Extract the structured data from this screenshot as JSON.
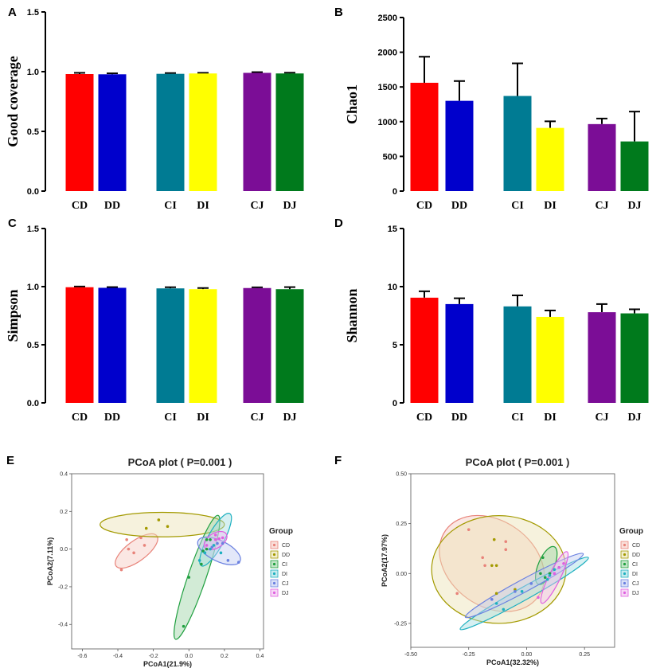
{
  "chart_data": [
    {
      "type": "bar",
      "panel": "A",
      "ylabel": "Good coverage",
      "ylim": [
        0,
        1.5
      ],
      "yticks": [
        "0.0",
        "0.5",
        "1.0",
        "1.5"
      ],
      "yticks_values": [
        0,
        0.5,
        1.0,
        1.5
      ],
      "categories": [
        "CD",
        "DD",
        "CI",
        "DI",
        "CJ",
        "DJ"
      ],
      "values": [
        0.98,
        0.978,
        0.982,
        0.985,
        0.99,
        0.985
      ],
      "errors": [
        0.01,
        0.008,
        0.006,
        0.005,
        0.006,
        0.006
      ],
      "colors": [
        "#ff0000",
        "#0000cc",
        "#007b93",
        "#ffff00",
        "#7b0d96",
        "#007a1c"
      ]
    },
    {
      "type": "bar",
      "panel": "B",
      "ylabel": "Chao1",
      "ylim": [
        0,
        2500
      ],
      "yticks": [
        "0",
        "500",
        "1000",
        "1500",
        "2000",
        "2500"
      ],
      "yticks_values": [
        0,
        500,
        1000,
        1500,
        2000,
        2500
      ],
      "categories": [
        "CD",
        "DD",
        "CI",
        "DI",
        "CJ",
        "DJ"
      ],
      "values": [
        1560,
        1300,
        1370,
        910,
        965,
        715
      ],
      "errors": [
        375,
        285,
        470,
        95,
        80,
        430
      ],
      "colors": [
        "#ff0000",
        "#0000cc",
        "#007b93",
        "#ffff00",
        "#7b0d96",
        "#007a1c"
      ]
    },
    {
      "type": "bar",
      "panel": "C",
      "ylabel": "Simpson",
      "ylim": [
        0,
        1.5
      ],
      "yticks": [
        "0.0",
        "0.5",
        "1.0",
        "1.5"
      ],
      "yticks_values": [
        0,
        0.5,
        1.0,
        1.5
      ],
      "categories": [
        "CD",
        "DD",
        "CI",
        "DI",
        "CJ",
        "DJ"
      ],
      "values": [
        0.995,
        0.99,
        0.985,
        0.978,
        0.988,
        0.978
      ],
      "errors": [
        0.006,
        0.006,
        0.01,
        0.01,
        0.006,
        0.018
      ],
      "colors": [
        "#ff0000",
        "#0000cc",
        "#007b93",
        "#ffff00",
        "#7b0d96",
        "#007a1c"
      ]
    },
    {
      "type": "bar",
      "panel": "D",
      "ylabel": "Shannon",
      "ylim": [
        0,
        15
      ],
      "yticks": [
        "0",
        "5",
        "10",
        "15"
      ],
      "yticks_values": [
        0,
        5,
        10,
        15
      ],
      "categories": [
        "CD",
        "DD",
        "CI",
        "DI",
        "CJ",
        "DJ"
      ],
      "values": [
        9.05,
        8.5,
        8.3,
        7.4,
        7.8,
        7.7
      ],
      "errors": [
        0.55,
        0.5,
        0.95,
        0.55,
        0.7,
        0.35
      ],
      "colors": [
        "#ff0000",
        "#0000cc",
        "#007b93",
        "#ffff00",
        "#7b0d96",
        "#007a1c"
      ]
    },
    {
      "type": "scatter",
      "panel": "E",
      "title": "PCoA plot ( P=0.001 )",
      "xlabel": "PCoA1(21.9%)",
      "ylabel": "PCoA2(7.11%)",
      "xlim": [
        -0.66,
        0.42
      ],
      "ylim": [
        -0.53,
        0.4
      ],
      "xticks": [
        "-0.6",
        "-0.4",
        "-0.2",
        "0.0",
        "0.2",
        "0.4"
      ],
      "xticks_values": [
        -0.6,
        -0.4,
        -0.2,
        0.0,
        0.2,
        0.4
      ],
      "yticks": [
        "0.4",
        "0.2",
        "0.0",
        "-0.2",
        "-0.4"
      ],
      "yticks_values": [
        0.4,
        0.2,
        0.0,
        -0.2,
        -0.4
      ],
      "legend_title": "Group",
      "series": [
        {
          "name": "CD",
          "color": "#e8837a",
          "fill": "#f7c9c2",
          "points": [
            [
              -0.35,
              0.05
            ],
            [
              -0.34,
              0.0
            ],
            [
              -0.31,
              -0.02
            ],
            [
              -0.25,
              0.02
            ],
            [
              -0.27,
              0.06
            ],
            [
              -0.38,
              -0.11
            ]
          ],
          "ellipse": {
            "cx": -0.295,
            "cy": -0.01,
            "rx": 0.14,
            "ry": 0.055,
            "angle": 35
          }
        },
        {
          "name": "DD",
          "color": "#a39a00",
          "fill": "#eae2b3",
          "points": [
            [
              -0.17,
              0.155
            ],
            [
              -0.12,
              0.12
            ],
            [
              -0.24,
              0.11
            ]
          ],
          "ellipse": {
            "cx": -0.15,
            "cy": 0.13,
            "rx": 0.35,
            "ry": 0.065,
            "angle": 0
          }
        },
        {
          "name": "CI",
          "color": "#20a040",
          "fill": "#9bd3a3",
          "points": [
            [
              0.1,
              0.05
            ],
            [
              0.12,
              0.05
            ],
            [
              0.1,
              0.0
            ],
            [
              0.07,
              -0.08
            ],
            [
              0.0,
              -0.15
            ],
            [
              -0.03,
              -0.41
            ],
            [
              0.08,
              -0.01
            ]
          ],
          "ellipse": {
            "cx": 0.045,
            "cy": -0.15,
            "rx": 0.35,
            "ry": 0.05,
            "angle": 70
          }
        },
        {
          "name": "DI",
          "color": "#1eb0c0",
          "fill": "#a3dde3",
          "points": [
            [
              0.12,
              0.0
            ],
            [
              0.14,
              0.02
            ],
            [
              0.18,
              -0.02
            ],
            [
              0.06,
              -0.06
            ],
            [
              0.09,
              -0.02
            ]
          ],
          "ellipse": {
            "cx": 0.15,
            "cy": 0.05,
            "rx": 0.16,
            "ry": 0.045,
            "angle": 60
          }
        },
        {
          "name": "CJ",
          "color": "#6a80e0",
          "fill": "#c2ccf2",
          "points": [
            [
              0.16,
              0.03
            ],
            [
              0.19,
              0.03
            ],
            [
              0.22,
              -0.06
            ],
            [
              0.28,
              -0.07
            ],
            [
              0.13,
              0.01
            ]
          ],
          "ellipse": {
            "cx": 0.17,
            "cy": -0.01,
            "rx": 0.13,
            "ry": 0.055,
            "angle": -25
          }
        },
        {
          "name": "DJ",
          "color": "#e060e0",
          "fill": "#f0bff0",
          "points": [
            [
              0.15,
              0.075
            ],
            [
              0.17,
              0.055
            ],
            [
              0.15,
              0.05
            ],
            [
              0.19,
              0.06
            ],
            [
              0.1,
              0.02
            ]
          ],
          "ellipse": {
            "cx": 0.15,
            "cy": 0.045,
            "rx": 0.07,
            "ry": 0.04,
            "angle": 30
          }
        }
      ]
    },
    {
      "type": "scatter",
      "panel": "F",
      "title": "PCoA plot ( P=0.001 )",
      "xlabel": "PCoA1(32.32%)",
      "ylabel": "PCoA2(17.97%)",
      "xlim": [
        -0.5,
        0.38
      ],
      "ylim": [
        -0.37,
        0.5
      ],
      "xticks": [
        "-0.50",
        "-0.25",
        "0.00",
        "0.25"
      ],
      "xticks_values": [
        -0.5,
        -0.25,
        0.0,
        0.25
      ],
      "yticks": [
        "0.50",
        "0.25",
        "0.00",
        "-0.25"
      ],
      "yticks_values": [
        0.5,
        0.25,
        0.0,
        -0.25
      ],
      "legend_title": "Group",
      "series": [
        {
          "name": "CD",
          "color": "#e8837a",
          "fill": "#f7c9c2",
          "points": [
            [
              -0.25,
              0.22
            ],
            [
              -0.19,
              0.08
            ],
            [
              -0.18,
              0.04
            ],
            [
              -0.09,
              0.16
            ],
            [
              -0.09,
              0.12
            ],
            [
              -0.3,
              -0.1
            ]
          ],
          "ellipse": {
            "cx": -0.15,
            "cy": 0.05,
            "rx": 0.26,
            "ry": 0.2,
            "angle": -40
          }
        },
        {
          "name": "DD",
          "color": "#a39a00",
          "fill": "#eae2b3",
          "points": [
            [
              -0.14,
              0.17
            ],
            [
              -0.15,
              0.04
            ],
            [
              -0.13,
              0.04
            ],
            [
              -0.05,
              -0.08
            ],
            [
              -0.13,
              -0.1
            ]
          ],
          "ellipse": {
            "cx": -0.12,
            "cy": 0.02,
            "rx": 0.29,
            "ry": 0.27,
            "angle": 0
          }
        },
        {
          "name": "CI",
          "color": "#20a040",
          "fill": "#9bd3a3",
          "points": [
            [
              0.07,
              0.08
            ],
            [
              0.1,
              0.0
            ],
            [
              0.08,
              -0.02
            ],
            [
              0.06,
              0.0
            ]
          ],
          "ellipse": {
            "cx": 0.085,
            "cy": 0.04,
            "rx": 0.1,
            "ry": 0.035,
            "angle": 70
          }
        },
        {
          "name": "DI",
          "color": "#1eb0c0",
          "fill": "#a3dde3",
          "points": [
            [
              -0.13,
              -0.15
            ],
            [
              -0.1,
              -0.18
            ],
            [
              -0.02,
              -0.09
            ],
            [
              0.09,
              -0.03
            ],
            [
              0.12,
              0.02
            ],
            [
              0.1,
              -0.01
            ]
          ],
          "ellipse": {
            "cx": -0.01,
            "cy": -0.1,
            "rx": 0.33,
            "ry": 0.03,
            "angle": 33
          }
        },
        {
          "name": "CJ",
          "color": "#6a80e0",
          "fill": "#c2ccf2",
          "points": [
            [
              -0.15,
              -0.13
            ],
            [
              -0.05,
              -0.09
            ],
            [
              0.02,
              -0.05
            ],
            [
              0.12,
              0.0
            ],
            [
              0.14,
              0.03
            ]
          ],
          "ellipse": {
            "cx": -0.01,
            "cy": -0.06,
            "rx": 0.3,
            "ry": 0.03,
            "angle": 32
          }
        },
        {
          "name": "DJ",
          "color": "#e060e0",
          "fill": "#f0bff0",
          "points": [
            [
              0.14,
              0.03
            ],
            [
              0.16,
              0.05
            ],
            [
              0.12,
              0.0
            ],
            [
              0.05,
              -0.12
            ]
          ],
          "ellipse": {
            "cx": 0.12,
            "cy": -0.02,
            "rx": 0.14,
            "ry": 0.025,
            "angle": 67
          }
        }
      ]
    }
  ]
}
